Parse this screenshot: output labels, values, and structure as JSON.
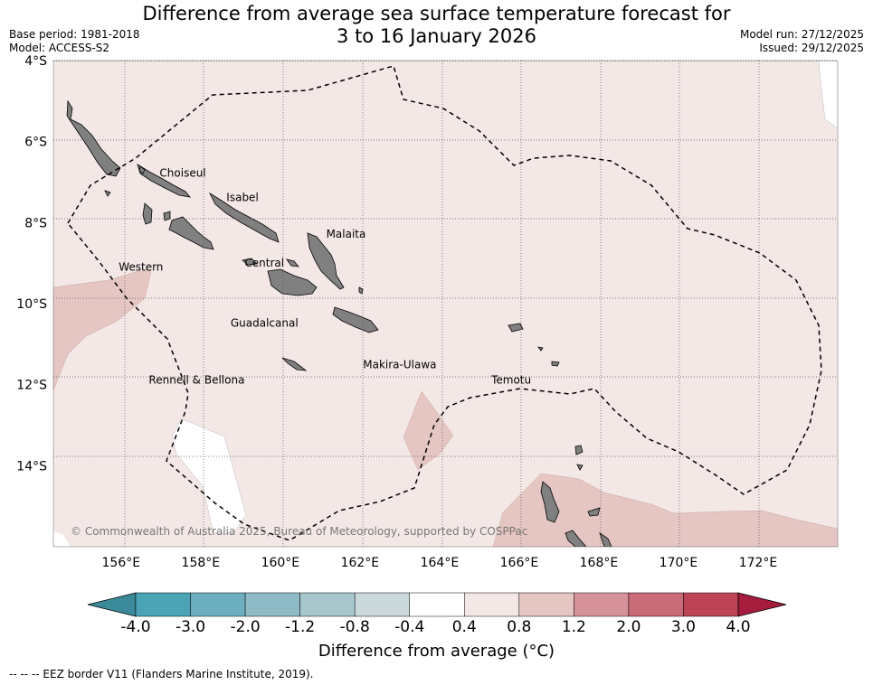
{
  "title": {
    "line1": "Difference from average sea surface temperature forecast for",
    "line2": "3 to 16 January 2026"
  },
  "meta_left": {
    "base_period": "Base period: 1981-2018",
    "model": "Model: ACCESS-S2"
  },
  "meta_right": {
    "model_run": "Model run: 27/12/2025",
    "issued": "Issued: 29/12/2025"
  },
  "map": {
    "lon_range": [
      154.3,
      174.0
    ],
    "lat_range": [
      -16.0,
      -4.0
    ],
    "lat_ticks": [
      {
        "value": -4,
        "label": "4°S"
      },
      {
        "value": -6,
        "label": "6°S"
      },
      {
        "value": -8,
        "label": "8°S"
      },
      {
        "value": -10,
        "label": "10°S"
      },
      {
        "value": -12,
        "label": "12°S"
      },
      {
        "value": -14,
        "label": "14°S"
      }
    ],
    "lon_ticks": [
      {
        "value": 156,
        "label": "156°E"
      },
      {
        "value": 158,
        "label": "158°E"
      },
      {
        "value": 160,
        "label": "160°E"
      },
      {
        "value": 162,
        "label": "162°E"
      },
      {
        "value": 164,
        "label": "164°E"
      },
      {
        "value": 166,
        "label": "166°E"
      },
      {
        "value": 168,
        "label": "168°E"
      },
      {
        "value": 170,
        "label": "170°E"
      },
      {
        "value": 172,
        "label": "172°E"
      }
    ],
    "regions": [
      {
        "name": "Choiseul",
        "lon": 157.55,
        "lat": -6.78
      },
      {
        "name": "Isabel",
        "lon": 159.05,
        "lat": -7.38
      },
      {
        "name": "Malaita",
        "lon": 161.65,
        "lat": -8.28
      },
      {
        "name": "Western",
        "lon": 156.5,
        "lat": -9.1
      },
      {
        "name": "Central",
        "lon": 159.6,
        "lat": -9.0
      },
      {
        "name": "Guadalcanal",
        "lon": 159.6,
        "lat": -10.48
      },
      {
        "name": "Makira-Ulawa",
        "lon": 163.0,
        "lat": -11.5
      },
      {
        "name": "Rennell & Bellona",
        "lon": 157.9,
        "lat": -11.88
      },
      {
        "name": "Temotu",
        "lon": 165.8,
        "lat": -11.88
      }
    ],
    "copyright": "© Commonwealth of Australia 2025, Bureau of Meteorology, supported by COSPPac",
    "colors": {
      "background_anomaly": "#f4e8e6",
      "warm_patch": "#e5c6c2",
      "neutral": "#ffffff",
      "land": "#808080",
      "grid": "#555555",
      "eez": "#000000"
    }
  },
  "colorbar": {
    "title": "Difference from average (°C)",
    "labels": [
      "-4.0",
      "-3.0",
      "-2.0",
      "-1.2",
      "-0.8",
      "-0.4",
      "0.4",
      "0.8",
      "1.2",
      "2.0",
      "3.0",
      "4.0"
    ],
    "colors": [
      "#3a8a99",
      "#4aa4b6",
      "#6bafc0",
      "#8ebbc6",
      "#a8c7cd",
      "#cbd9dc",
      "#ffffff",
      "#f4e8e6",
      "#e5c6c2",
      "#d6929a",
      "#ca6b78",
      "#bd4455",
      "#a61c3c"
    ]
  },
  "footer": "--  --  -- EEZ border V11 (Flanders Marine Institute, 2019)."
}
